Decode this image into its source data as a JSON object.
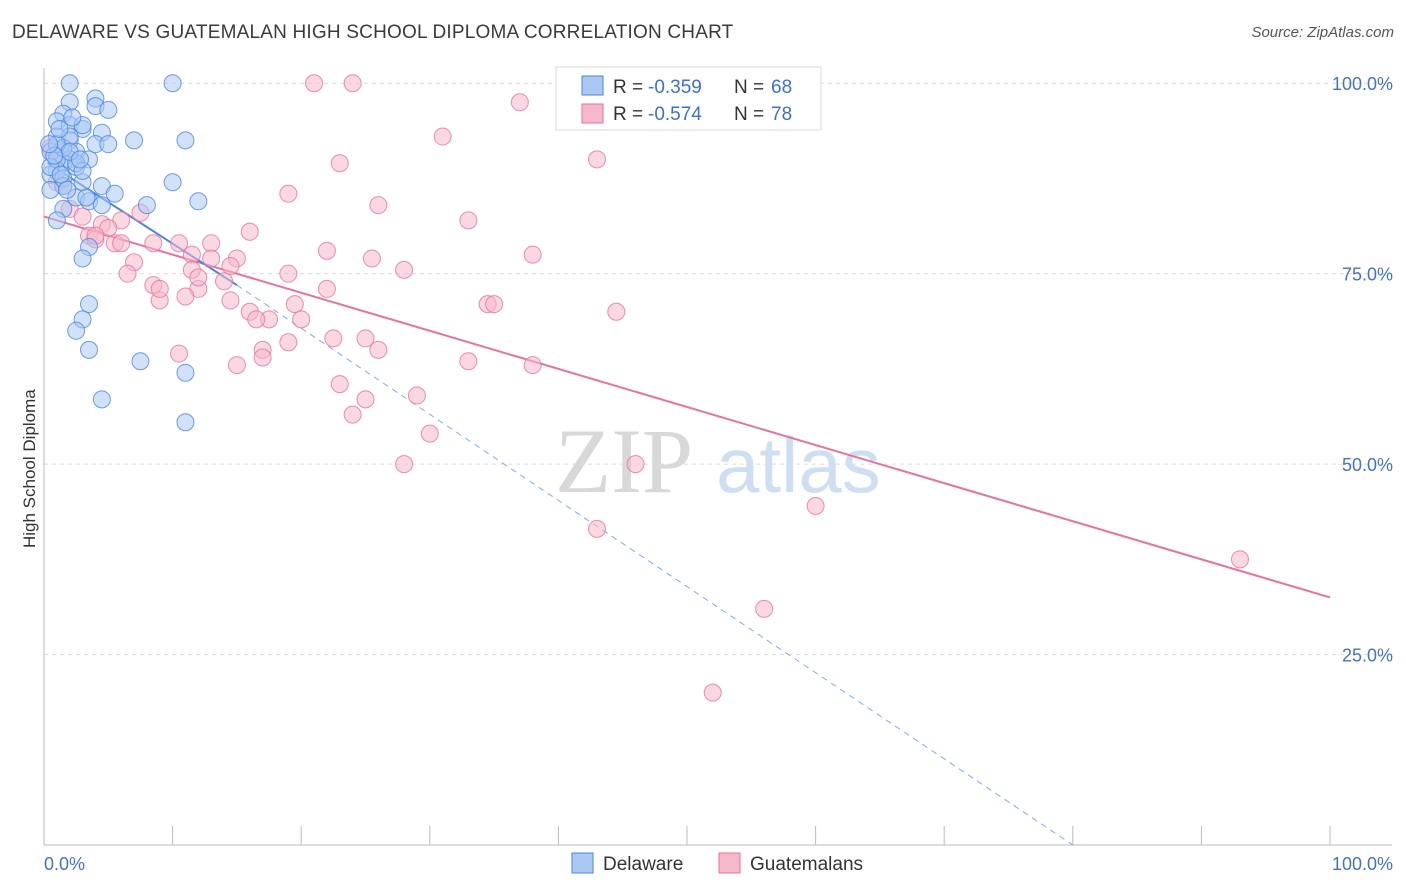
{
  "title": "DELAWARE VS GUATEMALAN HIGH SCHOOL DIPLOMA CORRELATION CHART",
  "source": "Source: ZipAtlas.com",
  "watermark": {
    "zip": "ZIP",
    "atlas": "atlas"
  },
  "colors": {
    "delaware": "#4a86e0",
    "guatemalans": "#e8729a",
    "delaware_fill": "#a9c8f2",
    "guatemalans_fill": "#f5b8cb",
    "axis_text": "#4472c4"
  },
  "legend": {
    "rows": [
      {
        "r_label": "R =",
        "r_value": "-0.359",
        "n_label": "N =",
        "n_value": "68"
      },
      {
        "r_label": "R =",
        "r_value": "-0.574",
        "n_label": "N =",
        "n_value": "78"
      }
    ]
  },
  "bottom_legend": [
    "Delaware",
    "Guatemalans"
  ],
  "chart_data": {
    "type": "scatter",
    "title": "DELAWARE VS GUATEMALAN HIGH SCHOOL DIPLOMA CORRELATION CHART",
    "xlabel": "",
    "ylabel": "High School Diploma",
    "xlim": [
      0,
      100
    ],
    "ylim": [
      0,
      102
    ],
    "x_tick_labels": [
      "0.0%",
      "100.0%"
    ],
    "y_tick_labels": [
      "100.0%",
      "75.0%",
      "50.0%",
      "25.0%"
    ],
    "y_ticks": [
      100,
      75,
      50,
      25
    ],
    "grid": true,
    "legend_position": "top-center",
    "series": [
      {
        "name": "Delaware",
        "r": -0.359,
        "n": 68,
        "trend_solid": [
          [
            0.3,
            89.5
          ],
          [
            15,
            73.5
          ]
        ],
        "trend_dashed": [
          [
            15,
            73.5
          ],
          [
            80,
            0
          ]
        ],
        "points": [
          [
            2,
            100
          ],
          [
            10,
            100
          ],
          [
            4,
            98
          ],
          [
            2,
            97.5
          ],
          [
            4,
            97
          ],
          [
            5,
            96.5
          ],
          [
            1.5,
            96
          ],
          [
            1,
            95
          ],
          [
            2,
            94.5
          ],
          [
            3,
            94
          ],
          [
            4.5,
            93.5
          ],
          [
            1,
            93
          ],
          [
            2,
            92.5
          ],
          [
            7,
            92.5
          ],
          [
            11,
            92.5
          ],
          [
            1.5,
            91.5
          ],
          [
            2.5,
            91
          ],
          [
            1,
            90.5
          ],
          [
            2,
            90
          ],
          [
            3.5,
            90
          ],
          [
            1.5,
            89.5
          ],
          [
            2.5,
            89
          ],
          [
            1,
            88.5
          ],
          [
            0.5,
            88
          ],
          [
            1.5,
            87.5
          ],
          [
            3,
            87
          ],
          [
            10,
            87
          ],
          [
            1.5,
            86.5
          ],
          [
            4.5,
            86.5
          ],
          [
            0.5,
            86
          ],
          [
            5.5,
            85.5
          ],
          [
            2.5,
            85
          ],
          [
            3.5,
            84.5
          ],
          [
            12,
            84.5
          ],
          [
            8,
            84
          ],
          [
            4.5,
            84
          ],
          [
            1.5,
            83.5
          ],
          [
            1,
            82
          ],
          [
            3.5,
            78.5
          ],
          [
            3,
            77
          ],
          [
            3.5,
            71
          ],
          [
            3,
            69
          ],
          [
            2.5,
            67.5
          ],
          [
            3.5,
            65
          ],
          [
            7.5,
            63.5
          ],
          [
            11,
            62
          ],
          [
            4.5,
            58.5
          ],
          [
            11,
            55.5
          ],
          [
            0.5,
            91
          ],
          [
            1,
            90
          ],
          [
            1.5,
            91.5
          ],
          [
            2.5,
            89.5
          ],
          [
            3,
            88.5
          ],
          [
            0.5,
            89
          ],
          [
            2,
            93
          ],
          [
            3,
            94.5
          ],
          [
            1,
            92
          ],
          [
            2,
            91
          ],
          [
            0.8,
            90.5
          ],
          [
            1.3,
            88
          ],
          [
            2.8,
            90
          ],
          [
            3.3,
            85
          ],
          [
            1.8,
            86
          ],
          [
            4,
            92
          ],
          [
            0.4,
            92
          ],
          [
            2.2,
            95.5
          ],
          [
            5,
            92
          ],
          [
            1.2,
            94
          ]
        ]
      },
      {
        "name": "Guatemalans",
        "r": -0.574,
        "n": 78,
        "trend_solid": [
          [
            0,
            82.5
          ],
          [
            100,
            32.5
          ]
        ],
        "points": [
          [
            21,
            100
          ],
          [
            24,
            100
          ],
          [
            37,
            97.5
          ],
          [
            31,
            93
          ],
          [
            43,
            90
          ],
          [
            23,
            89.5
          ],
          [
            19,
            85.5
          ],
          [
            26,
            84
          ],
          [
            33,
            82
          ],
          [
            0.5,
            91.5
          ],
          [
            1,
            87
          ],
          [
            1.5,
            86.5
          ],
          [
            2,
            83.5
          ],
          [
            7.5,
            83
          ],
          [
            3,
            82.5
          ],
          [
            6,
            82
          ],
          [
            4.5,
            81.5
          ],
          [
            5,
            81
          ],
          [
            16,
            80.5
          ],
          [
            3.5,
            80
          ],
          [
            4,
            79.5
          ],
          [
            5.5,
            79
          ],
          [
            8.5,
            79
          ],
          [
            10.5,
            79
          ],
          [
            13,
            79
          ],
          [
            22,
            78
          ],
          [
            38,
            77.5
          ],
          [
            11.5,
            77.5
          ],
          [
            13,
            77
          ],
          [
            15,
            77
          ],
          [
            25.5,
            77
          ],
          [
            7,
            76.5
          ],
          [
            14.5,
            76
          ],
          [
            11.5,
            75.5
          ],
          [
            28,
            75.5
          ],
          [
            6.5,
            75
          ],
          [
            19,
            75
          ],
          [
            14,
            74
          ],
          [
            8.5,
            73.5
          ],
          [
            12,
            73
          ],
          [
            22,
            73
          ],
          [
            14.5,
            71.5
          ],
          [
            9,
            71.5
          ],
          [
            11,
            72
          ],
          [
            19.5,
            71
          ],
          [
            34.5,
            71
          ],
          [
            35,
            71
          ],
          [
            16,
            70
          ],
          [
            17.5,
            69
          ],
          [
            20,
            69
          ],
          [
            44.5,
            70
          ],
          [
            22.5,
            66.5
          ],
          [
            25,
            66.5
          ],
          [
            19,
            66
          ],
          [
            17,
            65
          ],
          [
            26,
            65
          ],
          [
            10.5,
            64.5
          ],
          [
            17,
            64
          ],
          [
            33,
            63.5
          ],
          [
            38,
            63
          ],
          [
            15,
            63
          ],
          [
            23,
            60.5
          ],
          [
            29,
            59
          ],
          [
            25,
            58.5
          ],
          [
            24,
            56.5
          ],
          [
            30,
            54
          ],
          [
            28,
            50
          ],
          [
            46,
            50
          ],
          [
            60,
            44.5
          ],
          [
            43,
            41.5
          ],
          [
            93,
            37.5
          ],
          [
            56,
            31
          ],
          [
            52,
            20
          ],
          [
            16.5,
            69
          ],
          [
            12,
            74.5
          ],
          [
            9,
            73
          ],
          [
            6,
            79
          ],
          [
            4,
            80
          ]
        ]
      }
    ]
  }
}
